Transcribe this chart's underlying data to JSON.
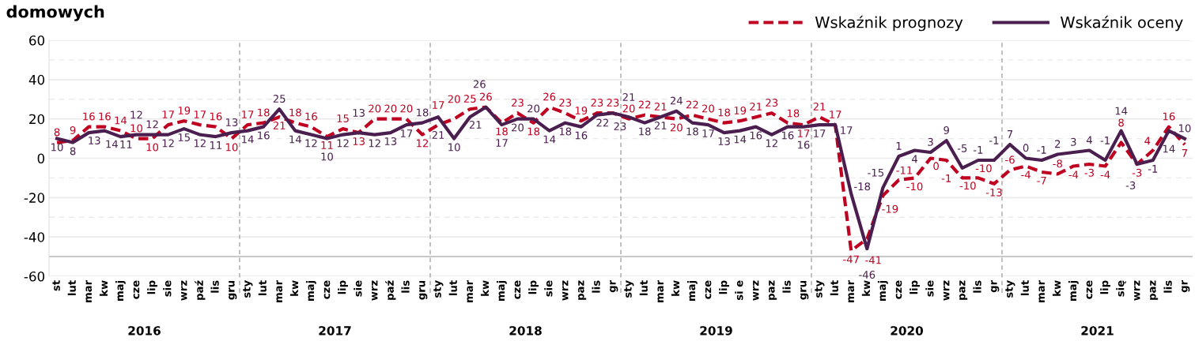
{
  "chart_data": {
    "type": "line",
    "title": "domowych",
    "categories": [
      "st",
      "lut",
      "mar",
      "kw",
      "maj",
      "cze",
      "lip",
      "sie",
      "wrz",
      "paź",
      "lis",
      "gru",
      "sty",
      "lut",
      "mar",
      "kw",
      "maj",
      "cze",
      "lip",
      "sie",
      "wrz",
      "paź",
      "lis",
      "gru",
      "sty",
      "lut",
      "mar",
      "kw",
      "maj",
      "cze",
      "lip",
      "sie",
      "wrz",
      "paz",
      "lis",
      "gr",
      "sty",
      "lut",
      "mar",
      "kw",
      "maj",
      "cze",
      "lip",
      "si e",
      "wrz",
      "paz",
      "lis",
      "gru",
      "sty",
      "lut",
      "mar",
      "kw",
      "maj",
      "cze",
      "lip",
      "sie",
      "wrz",
      "paz",
      "lis",
      "gr",
      "sty",
      "lut",
      "mar",
      "kw",
      "maj",
      "cze",
      "lip",
      "się",
      "wrz",
      "paz",
      "lis",
      "gr"
    ],
    "series": [
      {
        "name": "Wskaźnik prognozy",
        "color": "#c00020",
        "line_style": "dashed",
        "values": [
          8,
          9,
          16,
          16,
          14,
          10,
          10,
          17,
          19,
          17,
          16,
          10,
          17,
          18,
          21,
          18,
          16,
          11,
          15,
          13,
          20,
          20,
          20,
          12,
          17,
          20,
          25,
          26,
          18,
          23,
          18,
          26,
          23,
          19,
          23,
          23,
          20,
          22,
          21,
          20,
          22,
          20,
          18,
          19,
          21,
          23,
          18,
          17,
          21,
          17,
          -47,
          -41,
          -19,
          -11,
          -10,
          0,
          -1,
          -10,
          -10,
          -13,
          -6,
          -4,
          -7,
          -8,
          -4,
          -3,
          -4,
          8,
          -3,
          4,
          16,
          7
        ]
      },
      {
        "name": "Wskaźnik oceny",
        "color": "#4a1f4f",
        "line_style": "solid",
        "values": [
          10,
          8,
          13,
          14,
          11,
          12,
          12,
          12,
          15,
          12,
          11,
          13,
          14,
          16,
          25,
          14,
          12,
          10,
          12,
          13,
          12,
          13,
          17,
          18,
          21,
          10,
          21,
          26,
          17,
          20,
          20,
          14,
          18,
          16,
          22,
          23,
          21,
          18,
          21,
          24,
          18,
          17,
          13,
          14,
          16,
          12,
          16,
          16,
          17,
          17,
          -18,
          -46,
          -15,
          1,
          4,
          3,
          9,
          -5,
          -1,
          -1,
          7,
          0,
          -1,
          2,
          3,
          4,
          -1,
          14,
          -3,
          -1,
          14,
          10
        ]
      }
    ],
    "annotations": [
      "2016",
      "2017",
      "2018",
      "2019",
      "2020",
      "2021"
    ],
    "ylim": [
      -60,
      60
    ],
    "yticks": [
      -60,
      -40,
      -20,
      0,
      20,
      40,
      60
    ],
    "ref_lines": [
      {
        "axis": "y",
        "value": -50,
        "color": "#c8c8c8"
      }
    ],
    "grid": "y",
    "legend": "top right",
    "data_labels": true,
    "marker": "none"
  }
}
